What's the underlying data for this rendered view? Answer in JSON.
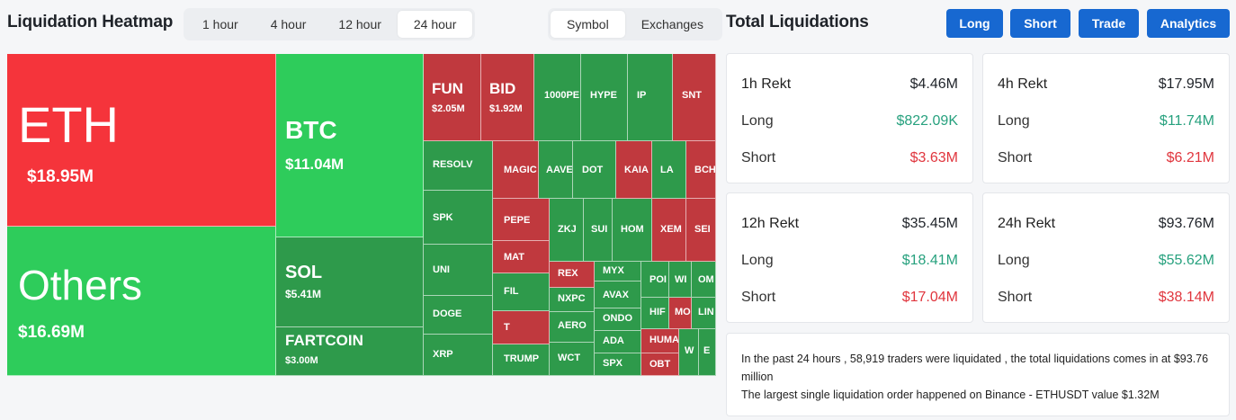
{
  "heatmap": {
    "title": "Liquidation Heatmap",
    "time_tabs": [
      "1 hour",
      "4 hour",
      "12 hour",
      "24 hour"
    ],
    "active_time_tab": 3,
    "view_tabs": [
      "Symbol",
      "Exchanges"
    ],
    "active_view_tab": 0,
    "colors": {
      "long_liq_bright": "#2ecc5b",
      "long_liq": "#2e9a4b",
      "short_liq_bright": "#f5343b",
      "short_liq": "#c0393e"
    },
    "tiles": [
      {
        "symbol": "ETH",
        "value": "$18.95M"
      },
      {
        "symbol": "Others",
        "value": "$16.69M"
      },
      {
        "symbol": "BTC",
        "value": "$11.04M"
      },
      {
        "symbol": "SOL",
        "value": "$5.41M"
      },
      {
        "symbol": "FARTCOIN",
        "value": "$3.00M"
      },
      {
        "symbol": "FUN",
        "value": "$2.05M"
      },
      {
        "symbol": "BID",
        "value": "$1.92M"
      },
      {
        "symbol": "1000PE",
        "value": ""
      },
      {
        "symbol": "HYPE",
        "value": ""
      },
      {
        "symbol": "IP",
        "value": ""
      },
      {
        "symbol": "SNT",
        "value": ""
      },
      {
        "symbol": "RESOLV",
        "value": ""
      },
      {
        "symbol": "MAGIC",
        "value": ""
      },
      {
        "symbol": "AAVE",
        "value": ""
      },
      {
        "symbol": "DOT",
        "value": ""
      },
      {
        "symbol": "KAIA",
        "value": ""
      },
      {
        "symbol": "LA",
        "value": ""
      },
      {
        "symbol": "BCH",
        "value": ""
      },
      {
        "symbol": "SPK",
        "value": ""
      },
      {
        "symbol": "PEPE",
        "value": ""
      },
      {
        "symbol": "ZKJ",
        "value": ""
      },
      {
        "symbol": "SUI",
        "value": ""
      },
      {
        "symbol": "HOM",
        "value": ""
      },
      {
        "symbol": "XEM",
        "value": ""
      },
      {
        "symbol": "SEI",
        "value": ""
      },
      {
        "symbol": "UNI",
        "value": ""
      },
      {
        "symbol": "MAT",
        "value": ""
      },
      {
        "symbol": "REX",
        "value": ""
      },
      {
        "symbol": "MYX",
        "value": ""
      },
      {
        "symbol": "POI",
        "value": ""
      },
      {
        "symbol": "WI",
        "value": ""
      },
      {
        "symbol": "OM",
        "value": ""
      },
      {
        "symbol": "FIL",
        "value": ""
      },
      {
        "symbol": "NXPC",
        "value": ""
      },
      {
        "symbol": "AVAX",
        "value": ""
      },
      {
        "symbol": "HIF",
        "value": ""
      },
      {
        "symbol": "MO",
        "value": ""
      },
      {
        "symbol": "LIN",
        "value": ""
      },
      {
        "symbol": "DOGE",
        "value": ""
      },
      {
        "symbol": "T",
        "value": ""
      },
      {
        "symbol": "ONDO",
        "value": ""
      },
      {
        "symbol": "AERO",
        "value": ""
      },
      {
        "symbol": "ADA",
        "value": ""
      },
      {
        "symbol": "HUMA",
        "value": ""
      },
      {
        "symbol": "XRP",
        "value": ""
      },
      {
        "symbol": "TRUMP",
        "value": ""
      },
      {
        "symbol": "WCT",
        "value": ""
      },
      {
        "symbol": "SPX",
        "value": ""
      },
      {
        "symbol": "OBT",
        "value": ""
      },
      {
        "symbol": "W",
        "value": ""
      },
      {
        "symbol": "E",
        "value": ""
      }
    ]
  },
  "total": {
    "title": "Total Liquidations",
    "buttons": [
      "Long",
      "Short",
      "Trade",
      "Analytics"
    ],
    "cards": [
      {
        "period": "1h Rekt",
        "total": "$4.46M",
        "long_label": "Long",
        "long": "$822.09K",
        "short_label": "Short",
        "short": "$3.63M"
      },
      {
        "period": "4h Rekt",
        "total": "$17.95M",
        "long_label": "Long",
        "long": "$11.74M",
        "short_label": "Short",
        "short": "$6.21M"
      },
      {
        "period": "12h Rekt",
        "total": "$35.45M",
        "long_label": "Long",
        "long": "$18.41M",
        "short_label": "Short",
        "short": "$17.04M"
      },
      {
        "period": "24h Rekt",
        "total": "$93.76M",
        "long_label": "Long",
        "long": "$55.62M",
        "short_label": "Short",
        "short": "$38.14M"
      }
    ],
    "summary_line1": "In the past 24 hours , 58,919 traders were liquidated , the total liquidations comes in at $93.76 million",
    "summary_line2": "The largest single liquidation order happened on Binance - ETHUSDT value $1.32M"
  }
}
